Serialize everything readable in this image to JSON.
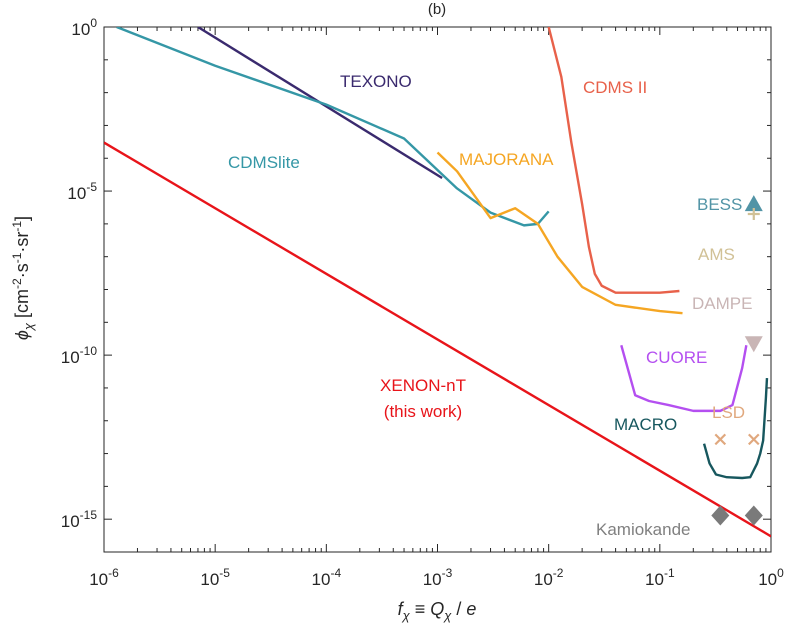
{
  "chart_data": {
    "type": "line",
    "title": "(b)",
    "xlabel": "f_χ ≡ Q_χ / e",
    "ylabel": "φ_χ [cm^-2·s^-1·sr^-1]",
    "xscale": "log",
    "yscale": "log",
    "xlim": [
      1e-06,
      1
    ],
    "ylim": [
      1e-16,
      1
    ],
    "x_ticks": [
      {
        "base": "10",
        "exp": "-6"
      },
      {
        "base": "10",
        "exp": "-5"
      },
      {
        "base": "10",
        "exp": "-4"
      },
      {
        "base": "10",
        "exp": "-3"
      },
      {
        "base": "10",
        "exp": "-2"
      },
      {
        "base": "10",
        "exp": "-1"
      },
      {
        "base": "10",
        "exp": "0"
      }
    ],
    "y_ticks": [
      {
        "base": "10",
        "exp": "0",
        "value": 1
      },
      {
        "base": "10",
        "exp": "-5",
        "value": 1e-05
      },
      {
        "base": "10",
        "exp": "-10",
        "value": 1e-10
      },
      {
        "base": "10",
        "exp": "-15",
        "value": 1e-15
      }
    ],
    "series": [
      {
        "name": "TEXONO",
        "label": "TEXONO",
        "color": "#3a2a6e",
        "points": [
          [
            7e-06,
            1
          ],
          [
            0.0011,
            2.5e-05
          ]
        ]
      },
      {
        "name": "CDMSlite",
        "label": "CDMSlite",
        "color": "#3597a6",
        "points": [
          [
            1.3e-06,
            1
          ],
          [
            1e-05,
            0.066
          ],
          [
            0.0001,
            0.0043
          ],
          [
            0.0005,
            0.0004
          ],
          [
            0.0015,
            1.2e-05
          ],
          [
            0.003,
            2.2e-06
          ],
          [
            0.006,
            9e-07
          ],
          [
            0.008,
            1e-06
          ],
          [
            0.01,
            2.4e-06
          ]
        ]
      },
      {
        "name": "MAJORANA",
        "label": "MAJORANA",
        "color": "#f5a623",
        "points": [
          [
            0.001,
            0.00015
          ],
          [
            0.0015,
            4e-05
          ],
          [
            0.003,
            1.5e-06
          ],
          [
            0.005,
            3e-06
          ],
          [
            0.008,
            1e-06
          ],
          [
            0.012,
            1e-07
          ],
          [
            0.02,
            1.2e-08
          ],
          [
            0.04,
            3.4e-09
          ],
          [
            0.1,
            2.2e-09
          ],
          [
            0.16,
            1.9e-09
          ]
        ]
      },
      {
        "name": "CDMS II",
        "label": "CDMS II",
        "color": "#e8614a",
        "points": [
          [
            0.01,
            1
          ],
          [
            0.013,
            0.03
          ],
          [
            0.016,
            0.0003
          ],
          [
            0.02,
            4e-06
          ],
          [
            0.023,
            2e-07
          ],
          [
            0.026,
            3e-08
          ],
          [
            0.03,
            1.3e-08
          ],
          [
            0.04,
            8e-09
          ],
          [
            0.1,
            8e-09
          ],
          [
            0.15,
            9e-09
          ]
        ]
      },
      {
        "name": "CUORE",
        "label": "CUORE",
        "color": "#b44ff0",
        "points": [
          [
            0.045,
            2e-10
          ],
          [
            0.06,
            6e-12
          ],
          [
            0.08,
            4e-12
          ],
          [
            0.12,
            3e-12
          ],
          [
            0.2,
            2e-12
          ],
          [
            0.35,
            2e-12
          ],
          [
            0.45,
            3e-12
          ],
          [
            0.55,
            4e-11
          ],
          [
            0.6,
            2e-10
          ]
        ]
      },
      {
        "name": "MACRO",
        "label": "MACRO",
        "color": "#17575e",
        "points": [
          [
            0.25,
            2e-13
          ],
          [
            0.28,
            5e-14
          ],
          [
            0.32,
            2.3e-14
          ],
          [
            0.4,
            1.9e-14
          ],
          [
            0.55,
            1.8e-14
          ],
          [
            0.65,
            1.9e-14
          ],
          [
            0.75,
            5e-14
          ],
          [
            0.8,
            1e-13
          ],
          [
            0.85,
            2.5e-13
          ],
          [
            0.9,
            5e-12
          ],
          [
            0.92,
            2e-11
          ]
        ]
      },
      {
        "name": "XENON-nT",
        "label": "XENON-nT",
        "label2": "(this work)",
        "color": "#e8141a",
        "points": [
          [
            1e-06,
            0.0003
          ],
          [
            1,
            3e-16
          ]
        ]
      }
    ],
    "markers": [
      {
        "name": "BESS",
        "label": "BESS",
        "shape": "triangle-up",
        "color": "#5294a6",
        "points": [
          [
            0.7,
            4e-06
          ]
        ]
      },
      {
        "name": "AMS",
        "label": "AMS",
        "shape": "plus",
        "color": "#d1c196",
        "points": [
          [
            0.7,
            2e-06
          ]
        ]
      },
      {
        "name": "DAMPE",
        "label": "DAMPE",
        "shape": "triangle-down",
        "color": "#c9b5b5",
        "points": [
          [
            0.7,
            2.3e-10
          ]
        ]
      },
      {
        "name": "LSD",
        "label": "LSD",
        "shape": "x",
        "color": "#e0a87e",
        "points": [
          [
            0.35,
            2.7e-13
          ],
          [
            0.7,
            2.7e-13
          ]
        ]
      },
      {
        "name": "Kamiokande",
        "label": "Kamiokande",
        "shape": "diamond",
        "color": "#7a7a7a",
        "points": [
          [
            0.35,
            1.3e-15
          ],
          [
            0.7,
            1.3e-15
          ]
        ]
      }
    ]
  }
}
